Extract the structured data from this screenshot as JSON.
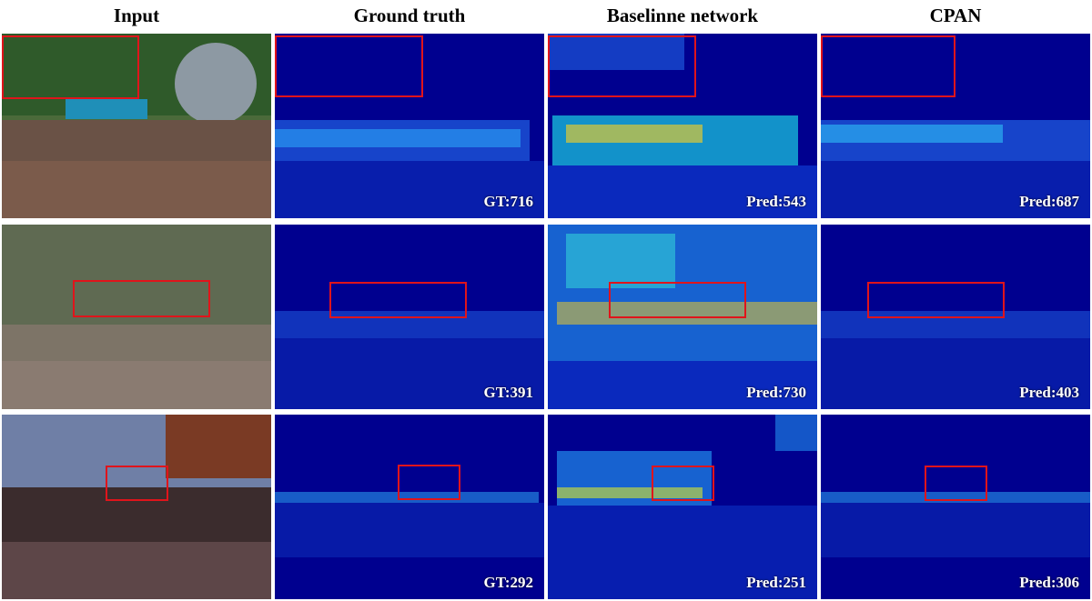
{
  "columns": [
    {
      "key": "input",
      "title": "Input"
    },
    {
      "key": "gt",
      "title": "Ground truth"
    },
    {
      "key": "baseline",
      "title": "Baselinne network"
    },
    {
      "key": "cpan",
      "title": "CPAN"
    }
  ],
  "rows": [
    {
      "gt": "GT:716",
      "baseline": "Pred:543",
      "cpan": "Pred:687"
    },
    {
      "gt": "GT:391",
      "baseline": "Pred:730",
      "cpan": "Pred:403"
    },
    {
      "gt": "GT:292",
      "baseline": "Pred:251",
      "cpan": "Pred:306"
    }
  ],
  "colors": {
    "density_bg": "#00008f",
    "box": "#e0141b",
    "label": "#ffffff"
  }
}
